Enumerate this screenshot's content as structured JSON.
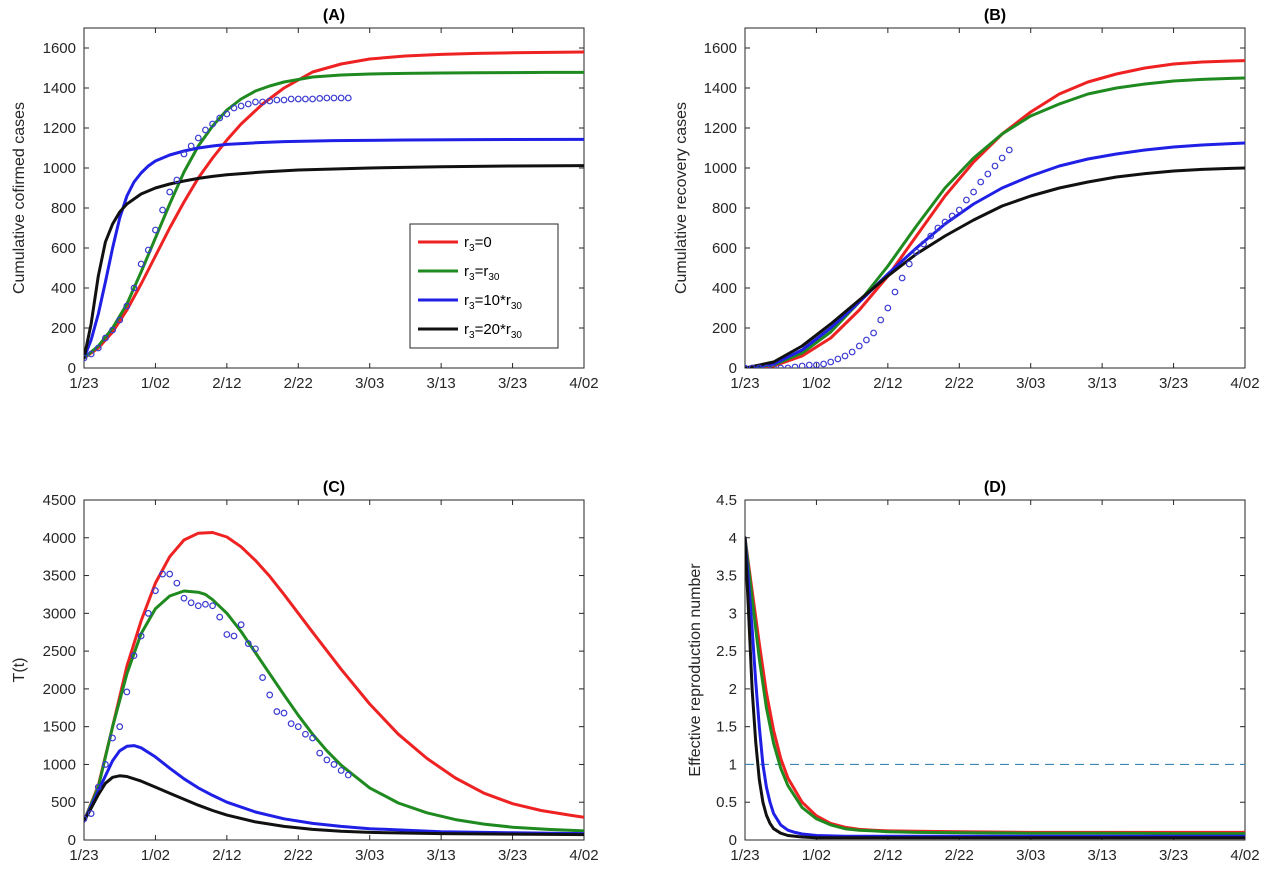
{
  "colors": {
    "r3_0": "#ee2222",
    "r3_r30": "#1f8a1f",
    "r3_10r30": "#1f1fe6",
    "r3_20r30": "#111111",
    "observed": "#3a3ad0",
    "threshold": "#3a86b4"
  },
  "x_tick_labels": [
    "1/23",
    "1/02",
    "2/12",
    "2/22",
    "3/03",
    "3/13",
    "3/23",
    "4/02"
  ],
  "legend": {
    "entries": [
      {
        "key": "r3_0",
        "parts": [
          [
            "r",
            ""
          ],
          [
            "3",
            "sub"
          ],
          [
            "=0",
            ""
          ]
        ]
      },
      {
        "key": "r3_r30",
        "parts": [
          [
            "r",
            ""
          ],
          [
            "3",
            "sub"
          ],
          [
            "=r",
            ""
          ],
          [
            "30",
            "sub"
          ]
        ]
      },
      {
        "key": "r3_10r30",
        "parts": [
          [
            "r",
            ""
          ],
          [
            "3",
            "sub"
          ],
          [
            "=10*r",
            ""
          ],
          [
            "30",
            "sub"
          ]
        ]
      },
      {
        "key": "r3_20r30",
        "parts": [
          [
            "r",
            ""
          ],
          [
            "3",
            "sub"
          ],
          [
            "=20*r",
            ""
          ],
          [
            "30",
            "sub"
          ]
        ]
      }
    ]
  },
  "chart_data": [
    {
      "id": "A",
      "type": "line",
      "title": "(A)",
      "xlabel": "",
      "ylabel": "Cumulative cofirmed cases",
      "xlim": [
        0,
        70
      ],
      "ylim": [
        0,
        1700
      ],
      "yticks": [
        0,
        200,
        400,
        600,
        800,
        1000,
        1200,
        1400,
        1600
      ],
      "legend_position": "center-right",
      "series": [
        {
          "key": "r3_0",
          "x": [
            0,
            2,
            4,
            6,
            8,
            10,
            12,
            14,
            16,
            18,
            20,
            22,
            25,
            28,
            32,
            36,
            40,
            45,
            50,
            55,
            60,
            65,
            70
          ],
          "y": [
            50,
            100,
            180,
            290,
            420,
            560,
            700,
            830,
            950,
            1050,
            1140,
            1220,
            1320,
            1400,
            1480,
            1520,
            1545,
            1560,
            1568,
            1573,
            1576,
            1578,
            1580
          ]
        },
        {
          "key": "r3_r30",
          "x": [
            0,
            2,
            4,
            6,
            8,
            10,
            12,
            14,
            16,
            18,
            20,
            22,
            24,
            26,
            28,
            32,
            36,
            40,
            45,
            50,
            55,
            60,
            65,
            70
          ],
          "y": [
            50,
            110,
            200,
            320,
            480,
            650,
            820,
            980,
            1110,
            1210,
            1290,
            1345,
            1385,
            1410,
            1430,
            1455,
            1465,
            1470,
            1473,
            1475,
            1476,
            1477,
            1478,
            1478
          ]
        },
        {
          "key": "r3_10r30",
          "x": [
            0,
            1,
            2,
            3,
            4,
            5,
            6,
            7,
            8,
            9,
            10,
            12,
            14,
            16,
            18,
            20,
            24,
            28,
            35,
            45,
            55,
            70
          ],
          "y": [
            50,
            140,
            270,
            430,
            600,
            750,
            860,
            930,
            975,
            1010,
            1035,
            1065,
            1085,
            1100,
            1110,
            1118,
            1126,
            1132,
            1137,
            1140,
            1142,
            1143
          ]
        },
        {
          "key": "r3_20r30",
          "x": [
            0,
            1,
            2,
            3,
            4,
            5,
            6,
            8,
            10,
            12,
            14,
            16,
            18,
            20,
            25,
            30,
            40,
            50,
            60,
            70
          ],
          "y": [
            50,
            220,
            460,
            630,
            720,
            780,
            820,
            870,
            900,
            920,
            935,
            948,
            958,
            966,
            980,
            990,
            1000,
            1006,
            1010,
            1012
          ]
        }
      ],
      "observed": {
        "x": [
          0,
          1,
          2,
          3,
          4,
          5,
          6,
          7,
          8,
          9,
          10,
          11,
          12,
          13,
          14,
          15,
          16,
          17,
          18,
          19,
          20,
          21,
          22,
          23,
          24,
          25,
          26,
          27,
          28,
          29,
          30,
          31,
          32,
          33,
          34,
          35,
          36,
          37
        ],
        "y": [
          50,
          70,
          100,
          150,
          190,
          240,
          310,
          400,
          520,
          590,
          690,
          790,
          880,
          940,
          1070,
          1110,
          1150,
          1190,
          1220,
          1250,
          1270,
          1300,
          1310,
          1320,
          1330,
          1330,
          1335,
          1340,
          1340,
          1345,
          1345,
          1345,
          1345,
          1348,
          1350,
          1350,
          1350,
          1350
        ]
      }
    },
    {
      "id": "B",
      "type": "line",
      "title": "(B)",
      "xlabel": "",
      "ylabel": "Cumulative recovery cases",
      "xlim": [
        0,
        70
      ],
      "ylim": [
        0,
        1700
      ],
      "yticks": [
        0,
        200,
        400,
        600,
        800,
        1000,
        1200,
        1400,
        1600
      ],
      "series": [
        {
          "key": "r3_0",
          "x": [
            0,
            4,
            8,
            12,
            16,
            20,
            24,
            28,
            32,
            36,
            40,
            44,
            48,
            52,
            56,
            60,
            64,
            68,
            70
          ],
          "y": [
            0,
            10,
            60,
            150,
            290,
            460,
            660,
            860,
            1030,
            1170,
            1280,
            1370,
            1430,
            1470,
            1500,
            1520,
            1530,
            1535,
            1537
          ]
        },
        {
          "key": "r3_r30",
          "x": [
            0,
            4,
            8,
            12,
            16,
            20,
            24,
            28,
            32,
            36,
            40,
            44,
            48,
            52,
            56,
            60,
            64,
            68,
            70
          ],
          "y": [
            0,
            15,
            75,
            180,
            330,
            510,
            710,
            900,
            1050,
            1170,
            1260,
            1320,
            1370,
            1400,
            1420,
            1435,
            1443,
            1448,
            1450
          ]
        },
        {
          "key": "r3_10r30",
          "x": [
            0,
            4,
            8,
            12,
            16,
            20,
            24,
            28,
            32,
            36,
            40,
            44,
            48,
            52,
            56,
            60,
            64,
            68,
            70
          ],
          "y": [
            0,
            20,
            90,
            200,
            330,
            470,
            600,
            720,
            820,
            900,
            960,
            1010,
            1045,
            1070,
            1090,
            1105,
            1115,
            1122,
            1125
          ]
        },
        {
          "key": "r3_20r30",
          "x": [
            0,
            4,
            8,
            12,
            16,
            20,
            24,
            28,
            32,
            36,
            40,
            44,
            48,
            52,
            56,
            60,
            64,
            68,
            70
          ],
          "y": [
            0,
            30,
            110,
            220,
            340,
            460,
            570,
            660,
            740,
            810,
            860,
            900,
            930,
            955,
            972,
            985,
            993,
            998,
            1000
          ]
        }
      ],
      "observed": {
        "x": [
          0,
          1,
          2,
          3,
          4,
          5,
          6,
          7,
          8,
          9,
          10,
          11,
          12,
          13,
          14,
          15,
          16,
          17,
          18,
          19,
          20,
          21,
          22,
          23,
          24,
          25,
          26,
          27,
          28,
          29,
          30,
          31,
          32,
          33,
          34,
          35,
          36,
          37
        ],
        "y": [
          0,
          0,
          0,
          0,
          0,
          0,
          0,
          5,
          10,
          15,
          15,
          20,
          30,
          45,
          60,
          80,
          110,
          140,
          175,
          240,
          300,
          380,
          450,
          520,
          580,
          620,
          660,
          700,
          730,
          760,
          790,
          840,
          880,
          930,
          970,
          1010,
          1050,
          1090
        ]
      }
    },
    {
      "id": "C",
      "type": "line",
      "title": "(C)",
      "xlabel": "",
      "ylabel": "T(t)",
      "xlim": [
        0,
        70
      ],
      "ylim": [
        0,
        4500
      ],
      "yticks": [
        0,
        500,
        1000,
        1500,
        2000,
        2500,
        3000,
        3500,
        4000,
        4500
      ],
      "series": [
        {
          "key": "r3_0",
          "x": [
            0,
            2,
            4,
            6,
            8,
            10,
            12,
            14,
            16,
            18,
            20,
            22,
            24,
            26,
            28,
            32,
            36,
            40,
            44,
            48,
            52,
            56,
            60,
            64,
            68,
            70
          ],
          "y": [
            250,
            720,
            1500,
            2300,
            2900,
            3400,
            3750,
            3970,
            4060,
            4070,
            4010,
            3880,
            3700,
            3490,
            3250,
            2750,
            2260,
            1800,
            1400,
            1080,
            820,
            620,
            480,
            390,
            330,
            300
          ]
        },
        {
          "key": "r3_r30",
          "x": [
            0,
            2,
            4,
            6,
            8,
            10,
            12,
            14,
            16,
            17,
            18,
            20,
            22,
            24,
            26,
            28,
            30,
            32,
            34,
            36,
            40,
            44,
            48,
            52,
            56,
            60,
            65,
            70
          ],
          "y": [
            250,
            700,
            1500,
            2200,
            2730,
            3060,
            3230,
            3295,
            3280,
            3250,
            3180,
            3000,
            2760,
            2480,
            2200,
            1920,
            1650,
            1400,
            1180,
            990,
            690,
            490,
            360,
            270,
            210,
            170,
            140,
            120
          ]
        },
        {
          "key": "r3_10r30",
          "x": [
            0,
            2,
            4,
            5,
            6,
            7,
            8,
            10,
            12,
            14,
            16,
            18,
            20,
            24,
            28,
            32,
            36,
            40,
            50,
            60,
            70
          ],
          "y": [
            250,
            650,
            1050,
            1180,
            1240,
            1250,
            1220,
            1100,
            950,
            810,
            690,
            590,
            500,
            370,
            280,
            220,
            180,
            150,
            110,
            95,
            85
          ]
        },
        {
          "key": "r3_20r30",
          "x": [
            0,
            1,
            2,
            3,
            4,
            5,
            6,
            8,
            10,
            12,
            14,
            16,
            18,
            20,
            24,
            28,
            32,
            36,
            40,
            50,
            60,
            70
          ],
          "y": [
            250,
            420,
            600,
            750,
            830,
            850,
            840,
            780,
            700,
            620,
            540,
            460,
            390,
            330,
            240,
            180,
            140,
            115,
            100,
            85,
            78,
            72
          ]
        }
      ],
      "observed": {
        "x": [
          0,
          1,
          2,
          3,
          4,
          5,
          6,
          7,
          8,
          9,
          10,
          11,
          12,
          13,
          14,
          15,
          16,
          17,
          18,
          19,
          20,
          21,
          22,
          23,
          24,
          25,
          26,
          27,
          28,
          29,
          30,
          31,
          32,
          33,
          34,
          35,
          36,
          37
        ],
        "y": [
          280,
          350,
          700,
          1000,
          1350,
          1500,
          1960,
          2440,
          2700,
          3000,
          3300,
          3520,
          3520,
          3400,
          3200,
          3140,
          3100,
          3120,
          3100,
          2950,
          2720,
          2700,
          2850,
          2600,
          2530,
          2150,
          1920,
          1700,
          1680,
          1540,
          1500,
          1400,
          1350,
          1150,
          1060,
          1000,
          920,
          860
        ]
      }
    },
    {
      "id": "D",
      "type": "line",
      "title": "(D)",
      "xlabel": "",
      "ylabel": "Effective reproduction number",
      "xlim": [
        0,
        70
      ],
      "ylim": [
        0,
        4.5
      ],
      "yticks": [
        0,
        0.5,
        1,
        1.5,
        2,
        2.5,
        3,
        3.5,
        4,
        4.5
      ],
      "ytick_labels": [
        "0",
        "0.5",
        "1",
        "1.5",
        "2",
        "2.5",
        "3",
        "3.5",
        "4",
        "4.5"
      ],
      "reference_line": {
        "y": 1,
        "style": "dashed"
      },
      "series": [
        {
          "key": "r3_0",
          "x": [
            0,
            1,
            2,
            3,
            4,
            5,
            6,
            8,
            10,
            12,
            14,
            16,
            18,
            20,
            24,
            30,
            40,
            50,
            60,
            70
          ],
          "y": [
            4,
            3.3,
            2.6,
            1.95,
            1.45,
            1.08,
            0.82,
            0.5,
            0.32,
            0.22,
            0.17,
            0.14,
            0.13,
            0.12,
            0.115,
            0.11,
            0.1,
            0.1,
            0.1,
            0.1
          ]
        },
        {
          "key": "r3_r30",
          "x": [
            0,
            1,
            2,
            3,
            4,
            5,
            6,
            8,
            10,
            12,
            14,
            16,
            18,
            20,
            24,
            30,
            40,
            50,
            60,
            70
          ],
          "y": [
            4,
            3.2,
            2.4,
            1.75,
            1.28,
            0.95,
            0.72,
            0.43,
            0.28,
            0.2,
            0.15,
            0.13,
            0.12,
            0.11,
            0.1,
            0.095,
            0.09,
            0.09,
            0.085,
            0.085
          ]
        },
        {
          "key": "r3_10r30",
          "x": [
            0,
            0.5,
            1,
            1.5,
            2,
            2.5,
            3,
            3.5,
            4,
            5,
            6,
            7,
            8,
            10,
            14,
            20,
            30,
            50,
            70
          ],
          "y": [
            4,
            3.4,
            2.8,
            2.1,
            1.5,
            1.0,
            0.7,
            0.5,
            0.35,
            0.2,
            0.13,
            0.1,
            0.08,
            0.06,
            0.05,
            0.05,
            0.05,
            0.05,
            0.05
          ]
        },
        {
          "key": "r3_20r30",
          "x": [
            0,
            0.5,
            1,
            1.5,
            2,
            2.5,
            3,
            3.5,
            4,
            5,
            6,
            8,
            10,
            14,
            20,
            30,
            50,
            70
          ],
          "y": [
            4,
            3.0,
            2.0,
            1.3,
            0.8,
            0.5,
            0.33,
            0.22,
            0.15,
            0.09,
            0.06,
            0.04,
            0.03,
            0.03,
            0.03,
            0.03,
            0.03,
            0.03
          ]
        }
      ]
    }
  ]
}
